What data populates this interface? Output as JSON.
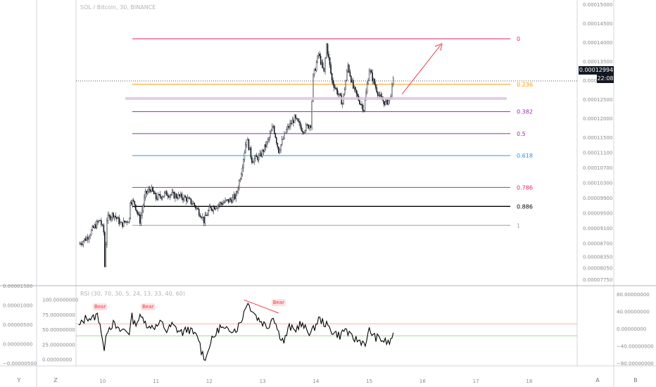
{
  "header": {
    "symbol_title": "SOL / Bitcoin, 30, BINANCE",
    "rsi_title": "RSI (30, 70, 30, 5, 24, 13, 33, 40, 60)"
  },
  "price_tag": {
    "value": "0.00012994",
    "countdown": "22:08"
  },
  "toolbar": {
    "left_y": "Y",
    "left_z": "Z",
    "right_a": "A",
    "right_b": "B"
  },
  "colors": {
    "bg": "#ffffff",
    "candle": "#131722",
    "arrow": "#f23645",
    "bear": "#f23645"
  },
  "chart_data": [
    {
      "type": "candlestick",
      "title": "SOL / Bitcoin, 30, BINANCE",
      "x_ticks": [
        "10",
        "11",
        "12",
        "13",
        "14",
        "15",
        "16",
        "17",
        "18"
      ],
      "x_range": [
        9.5,
        18.9
      ],
      "y_ticks_right": [
        "0.00015000",
        "0.00014500",
        "0.00014000",
        "0.00013500",
        "0.00013000",
        "0.00012500",
        "0.00012000",
        "0.00011500",
        "0.00011100",
        "0.00010700",
        "0.00010300",
        "0.00009900",
        "0.00009500",
        "0.00009100",
        "0.00008700",
        "0.00008350",
        "0.00008050",
        "0.00007750"
      ],
      "ylim": [
        7.7e-05,
        0.0001505
      ],
      "price_path": [
        [
          9.55,
          8.68e-05
        ],
        [
          9.7,
          8.85e-05
        ],
        [
          9.85,
          9.15e-05
        ],
        [
          9.95,
          9.32e-05
        ],
        [
          10.02,
          9e-05
        ],
        [
          10.04,
          8.1e-05
        ],
        [
          10.08,
          9.35e-05
        ],
        [
          10.2,
          9.48e-05
        ],
        [
          10.35,
          9.2e-05
        ],
        [
          10.5,
          9.35e-05
        ],
        [
          10.52,
          9.85e-05
        ],
        [
          10.6,
          9.75e-05
        ],
        [
          10.7,
          9.3e-05
        ],
        [
          10.8,
          0.0001
        ],
        [
          10.9,
          0.0001015
        ],
        [
          11.0,
          9.9e-05
        ],
        [
          11.2,
          0.0001002
        ],
        [
          11.4,
          9.95e-05
        ],
        [
          11.55,
          9.9e-05
        ],
        [
          11.7,
          9.75e-05
        ],
        [
          11.85,
          9.45e-05
        ],
        [
          11.9,
          9.3e-05
        ],
        [
          12.0,
          9.6e-05
        ],
        [
          12.2,
          9.75e-05
        ],
        [
          12.4,
          9.85e-05
        ],
        [
          12.5,
          9.95e-05
        ],
        [
          12.6,
          0.000106
        ],
        [
          12.7,
          0.000115
        ],
        [
          12.8,
          0.000109
        ],
        [
          12.95,
          0.00011
        ],
        [
          13.1,
          0.000114
        ],
        [
          13.2,
          0.000118
        ],
        [
          13.3,
          0.0001115
        ],
        [
          13.45,
          0.000117
        ],
        [
          13.6,
          0.00012
        ],
        [
          13.75,
          0.000117
        ],
        [
          13.9,
          0.0001185
        ],
        [
          13.95,
          0.000131
        ],
        [
          14.05,
          0.000137
        ],
        [
          14.15,
          0.000132
        ],
        [
          14.2,
          0.0001395
        ],
        [
          14.3,
          0.00013
        ],
        [
          14.4,
          0.000127
        ],
        [
          14.5,
          0.000124
        ],
        [
          14.6,
          0.000134
        ],
        [
          14.7,
          0.000128
        ],
        [
          14.8,
          0.000125
        ],
        [
          14.9,
          0.0001225
        ],
        [
          15.0,
          0.000133
        ],
        [
          15.1,
          0.000129
        ],
        [
          15.2,
          0.0001255
        ],
        [
          15.3,
          0.000124
        ],
        [
          15.38,
          0.000125
        ],
        [
          15.45,
          0.0001299
        ]
      ],
      "fibonacci": [
        {
          "label": "0",
          "price": 0.000141,
          "color": "#e91e63"
        },
        {
          "label": "0.236",
          "price": 0.000129,
          "color": "#ff9800"
        },
        {
          "label": "0.382",
          "price": 0.0001218,
          "color": "#9c27b0"
        },
        {
          "label": "0.5",
          "price": 0.000116,
          "color": "#9c27b0"
        },
        {
          "label": "0.618",
          "price": 0.0001102,
          "color": "#2196f3"
        },
        {
          "label": "0.786",
          "price": 0.0001018,
          "color": "#e91e63"
        },
        {
          "label": "0.886",
          "price": 9.68e-05,
          "color": "#000000"
        },
        {
          "label": "1",
          "price": 9.18e-05,
          "color": "#9e9e9e"
        }
      ],
      "last_price": 0.0001299,
      "legend": "none",
      "grid": false
    },
    {
      "type": "line",
      "title": "RSI (30, 70, 30, 5, 24, 13, 33, 40, 60)",
      "y_ticks_left_inner": [
        "100.00000000",
        "75.00000000",
        "50.00000000",
        "25.00000000",
        "0.00000000"
      ],
      "y_ticks_left_outer": [
        "0.00001500",
        "0.00001000",
        "0.00000500",
        "0.00000000",
        "−0.00000500"
      ],
      "y_ticks_right": [
        "80.00000000",
        "40.00000000",
        "0.00000000",
        "−40.00000000",
        "−80.00000000"
      ],
      "ylim": [
        -8,
        112
      ],
      "levels": [
        {
          "value": 60,
          "color": "#f5b7a8"
        },
        {
          "value": 40,
          "color": "#a5d6a7"
        }
      ],
      "x": [
        9.55,
        9.7,
        9.8,
        9.9,
        9.95,
        10.0,
        10.03,
        10.06,
        10.1,
        10.2,
        10.3,
        10.4,
        10.5,
        10.55,
        10.6,
        10.7,
        10.8,
        10.85,
        10.9,
        11.0,
        11.1,
        11.2,
        11.3,
        11.4,
        11.5,
        11.6,
        11.7,
        11.8,
        11.85,
        11.9,
        11.95,
        12.0,
        12.1,
        12.2,
        12.3,
        12.4,
        12.5,
        12.6,
        12.7,
        12.8,
        12.9,
        13.0,
        13.1,
        13.2,
        13.3,
        13.4,
        13.5,
        13.6,
        13.7,
        13.8,
        13.9,
        13.95,
        14.05,
        14.15,
        14.3,
        14.45,
        14.55,
        14.65,
        14.8,
        14.95,
        15.0,
        15.1,
        15.2,
        15.3,
        15.38,
        15.45
      ],
      "values": [
        55,
        72,
        68,
        75,
        62,
        30,
        8,
        45,
        52,
        60,
        48,
        50,
        46,
        72,
        60,
        70,
        68,
        50,
        58,
        55,
        62,
        48,
        58,
        50,
        45,
        52,
        44,
        35,
        15,
        5,
        5,
        25,
        40,
        55,
        48,
        52,
        50,
        65,
        95,
        85,
        70,
        62,
        55,
        74,
        45,
        30,
        55,
        48,
        60,
        52,
        45,
        50,
        68,
        62,
        48,
        40,
        52,
        38,
        32,
        28,
        50,
        38,
        35,
        30,
        28,
        45
      ],
      "annotations": [
        {
          "text": "Bear",
          "x": 9.95
        },
        {
          "text": "Bear",
          "x": 10.85
        },
        {
          "text": "Bear",
          "x": 13.3
        }
      ],
      "legend": "none",
      "grid": false
    }
  ]
}
